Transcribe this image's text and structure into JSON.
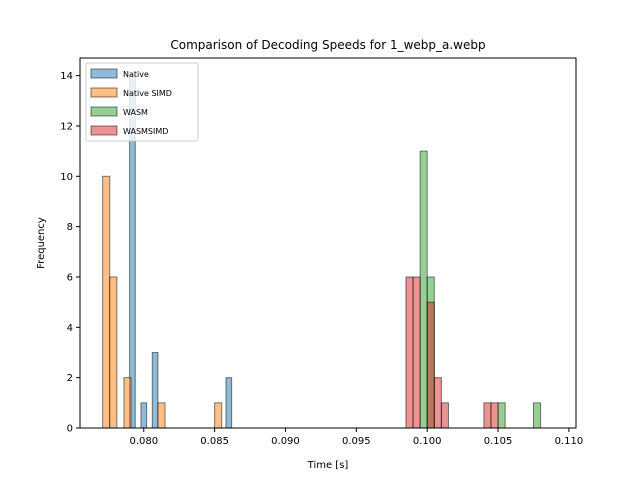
{
  "chart_data": {
    "type": "histogram",
    "title": "Comparison of Decoding Speeds for 1_webp_a.webp",
    "xlabel": "Time [s]",
    "ylabel": "Frequency",
    "xlim": [
      0.0755,
      0.1105
    ],
    "ylim": [
      0,
      14.7
    ],
    "xticks": [
      "0.080",
      "0.085",
      "0.090",
      "0.095",
      "0.100",
      "0.105",
      "0.110"
    ],
    "xtick_values": [
      0.08,
      0.085,
      0.09,
      0.095,
      0.1,
      0.105,
      0.11
    ],
    "yticks": [
      "0",
      "2",
      "4",
      "6",
      "8",
      "10",
      "12",
      "14"
    ],
    "ytick_values": [
      0,
      2,
      4,
      6,
      8,
      10,
      12,
      14
    ],
    "grid": false,
    "legend_position": "top-left",
    "series": [
      {
        "name": "Native",
        "color": "#1f77b4",
        "bins": [
          {
            "x0": 0.079,
            "x1": 0.0794,
            "count": 14
          },
          {
            "x0": 0.0794,
            "x1": 0.0798,
            "count": 0
          },
          {
            "x0": 0.0798,
            "x1": 0.0802,
            "count": 1
          },
          {
            "x0": 0.0806,
            "x1": 0.081,
            "count": 3
          },
          {
            "x0": 0.0858,
            "x1": 0.0862,
            "count": 2
          }
        ]
      },
      {
        "name": "Native SIMD",
        "color": "#ff7f0e",
        "bins": [
          {
            "x0": 0.0771,
            "x1": 0.0776,
            "count": 10
          },
          {
            "x0": 0.0776,
            "x1": 0.0781,
            "count": 6
          },
          {
            "x0": 0.0786,
            "x1": 0.0791,
            "count": 2
          },
          {
            "x0": 0.081,
            "x1": 0.0815,
            "count": 1
          },
          {
            "x0": 0.085,
            "x1": 0.0855,
            "count": 1
          }
        ]
      },
      {
        "name": "WASM",
        "color": "#2ca02c",
        "bins": [
          {
            "x0": 0.0995,
            "x1": 0.1,
            "count": 11
          },
          {
            "x0": 0.1,
            "x1": 0.1005,
            "count": 6
          },
          {
            "x0": 0.105,
            "x1": 0.1055,
            "count": 1
          },
          {
            "x0": 0.1075,
            "x1": 0.108,
            "count": 1
          }
        ]
      },
      {
        "name": "WASMSIMD",
        "color": "#d62728",
        "bins": [
          {
            "x0": 0.0985,
            "x1": 0.099,
            "count": 6
          },
          {
            "x0": 0.099,
            "x1": 0.0995,
            "count": 6
          },
          {
            "x0": 0.1,
            "x1": 0.1005,
            "count": 5
          },
          {
            "x0": 0.1005,
            "x1": 0.101,
            "count": 2
          },
          {
            "x0": 0.101,
            "x1": 0.1015,
            "count": 1
          },
          {
            "x0": 0.104,
            "x1": 0.1045,
            "count": 1
          },
          {
            "x0": 0.1045,
            "x1": 0.105,
            "count": 1
          }
        ]
      }
    ]
  }
}
